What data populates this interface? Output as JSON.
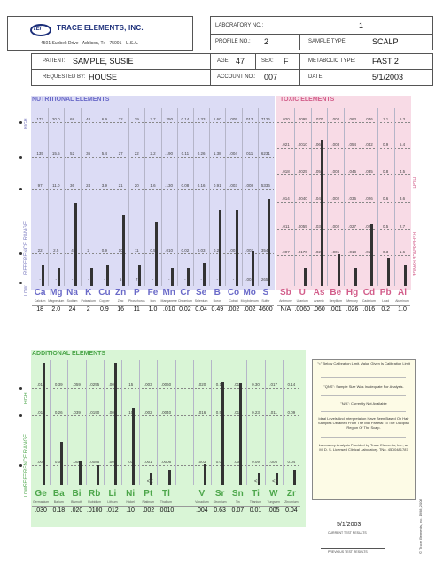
{
  "lab": {
    "name": "TRACE ELEMENTS, INC.",
    "address": "4501 Sunbelt Drive · Addison, Tx · 75001 · U.S.A.",
    "logo_text": "TEI"
  },
  "header": {
    "laboratory_no_label": "LABORATORY NO.:",
    "laboratory_no": "1",
    "profile_no_label": "PROFILE NO.:",
    "profile_no": "2",
    "sample_type_label": "SAMPLE TYPE:",
    "sample_type": "SCALP",
    "patient_label": "PATIENT:",
    "patient": "SAMPLE, SUSIE",
    "age_label": "AGE:",
    "age": "47",
    "sex_label": "SEX:",
    "sex": "F",
    "metabolic_type_label": "METABOLIC TYPE:",
    "metabolic_type": "FAST 2",
    "requested_by_label": "REQUESTED BY:",
    "requested_by": "HOUSE",
    "account_no_label": "ACCOUNT NO.:",
    "account_no": "007",
    "date_label": "DATE:",
    "date": "5/1/2003"
  },
  "nutritional": {
    "title": "NUTRITIONAL ELEMENTS",
    "side_label": "REFERENCE RANGE",
    "high_label": "HIGH",
    "low_label": "LOW",
    "rows": [
      [
        "172",
        "20.0",
        "68",
        "48",
        "6.9",
        "32",
        "29",
        "2.7",
        ".250",
        "0.14",
        "0.33",
        "1.60",
        ".005",
        "013",
        "7126"
      ],
      [
        "135",
        "15.5",
        "52",
        "36",
        "5.4",
        "27",
        "22",
        "2.2",
        ".190",
        "0.11",
        "0.26",
        "1.38",
        ".004",
        "011",
        "6231"
      ],
      [
        "97",
        "11.0",
        "36",
        "24",
        "3.9",
        "21",
        "20",
        "1.6",
        ".130",
        "0.08",
        "0.16",
        "0.91",
        ".003",
        ".008",
        "5336"
      ],
      [
        "22",
        "2.5",
        "4",
        "2",
        "0.9",
        "10",
        "11",
        "0.5",
        ".010",
        "0.02",
        "0.03",
        "0.20",
        ".001",
        ".003",
        "3546"
      ],
      [
        "-",
        "-",
        "-",
        "-",
        "-",
        "5",
        "7",
        "-",
        "-",
        "-",
        "-",
        "-",
        "-",
        ".001",
        "2651"
      ]
    ],
    "elements": [
      {
        "sym": "Ca",
        "name": "Calcium",
        "result": "18",
        "level": 0.12
      },
      {
        "sym": "Mg",
        "name": "Magnesium",
        "result": "2.0",
        "level": 0.1
      },
      {
        "sym": "Na",
        "name": "Sodium",
        "result": "24",
        "level": 0.47
      },
      {
        "sym": "K",
        "name": "Potassium",
        "result": "2",
        "level": 0.1
      },
      {
        "sym": "Cu",
        "name": "Copper",
        "result": "0.9",
        "level": 0.12
      },
      {
        "sym": "Zn",
        "name": "Zinc",
        "result": "16",
        "level": 0.4
      },
      {
        "sym": "P",
        "name": "Phosphorus",
        "result": "11",
        "level": 0.12
      },
      {
        "sym": "Fe",
        "name": "Iron",
        "result": "1.0",
        "level": 0.36
      },
      {
        "sym": "Mn",
        "name": "Manganese",
        "result": ".010",
        "level": 0.1
      },
      {
        "sym": "Cr",
        "name": "Chromium",
        "result": "0.02",
        "level": 0.1
      },
      {
        "sym": "Se",
        "name": "Selenium",
        "result": "0.04",
        "level": 0.13
      },
      {
        "sym": "B",
        "name": "Boron",
        "result": "0.49",
        "level": 0.43
      },
      {
        "sym": "Co",
        "name": "Cobalt",
        "result": ".002",
        "level": 0.43
      },
      {
        "sym": "Mo",
        "name": "Molybdenum",
        "result": ".002",
        "level": 0.2
      },
      {
        "sym": "S",
        "name": "Sulfur",
        "result": "4600",
        "level": 0.49
      }
    ]
  },
  "toxic": {
    "title": "TOXIC ELEMENTS",
    "high_label": "HIGH",
    "side_label": "REFERENCE RANGE",
    "rows": [
      [
        ".020",
        ".0095",
        ".070",
        ".004",
        ".063",
        ".046",
        "1.1",
        "6.3"
      ],
      [
        ".021",
        ".0010",
        ".060",
        ".003",
        ".054",
        ".042",
        "0.9",
        "5.4"
      ],
      [
        ".018",
        ".0025",
        ".050",
        ".003",
        ".045",
        ".035",
        "0.8",
        "4.5"
      ],
      [
        ".014",
        ".0040",
        ".040",
        ".002",
        ".036",
        ".026",
        "0.6",
        "3.6"
      ],
      [
        ".011",
        ".0055",
        ".030",
        ".002",
        ".027",
        ".021",
        "0.5",
        "2.7"
      ],
      [
        ".007",
        ".0170",
        ".020",
        ".001",
        ".018",
        ".014",
        "0.3",
        "1.6"
      ]
    ],
    "elements": [
      {
        "sym": "Sb",
        "name": "Antimony",
        "result": "N/A",
        "level": 0
      },
      {
        "sym": "U",
        "name": "Uranium",
        "result": ".0060",
        "level": 0.1
      },
      {
        "sym": "As",
        "name": "Arsenic",
        "result": ".060",
        "level": 0.82
      },
      {
        "sym": "Be",
        "name": "Beryllium",
        "result": ".001",
        "level": 0.18
      },
      {
        "sym": "Hg",
        "name": "Mercury",
        "result": ".026",
        "level": 0.1
      },
      {
        "sym": "Cd",
        "name": "Cadmium",
        "result": ".016",
        "level": 0.35
      },
      {
        "sym": "Pb",
        "name": "Lead",
        "result": "0.2",
        "level": 0.16
      },
      {
        "sym": "Al",
        "name": "Aluminum",
        "result": "1.0",
        "level": 0.12
      }
    ]
  },
  "additional": {
    "title": "ADDITIONAL ELEMENTS",
    "side_label": "REFERENCE RANGE",
    "high_label": "HIGH",
    "low_label": "LOW",
    "rows": [
      [
        ".014",
        "0.39",
        ".059",
        ".0255",
        ".009",
        ".15",
        ".003",
        ".0060",
        "",
        ".020",
        "0.14",
        ".015",
        "0.30",
        ".017",
        "0.14"
      ],
      [
        ".011",
        "0.26",
        ".039",
        ".0190",
        ".006",
        ".10",
        ".002",
        ".0040",
        "",
        ".016",
        "0.58",
        ".012",
        "0.23",
        ".011",
        "0.09"
      ],
      [
        ".006",
        "0.06",
        ".008",
        ".0085",
        ".003",
        ".01",
        ".001",
        ".0006",
        "",
        ".003",
        "0.05",
        ".005",
        "0.09",
        ".005",
        "0.04"
      ]
    ],
    "elements": [
      {
        "sym": "Ge",
        "name": "Germanium",
        "result": ".030",
        "level": 0.98,
        "lt": false
      },
      {
        "sym": "Ba",
        "name": "Barium",
        "result": "0.18",
        "level": 0.35,
        "lt": false
      },
      {
        "sym": "Bi",
        "name": "Bismuth",
        "result": ".020",
        "level": 0.2,
        "lt": false
      },
      {
        "sym": "Rb",
        "name": "Rubidium",
        "result": ".0100",
        "level": 0.16,
        "lt": false
      },
      {
        "sym": "Li",
        "name": "Lithium",
        "result": ".012",
        "level": 0.98,
        "lt": false
      },
      {
        "sym": "Ni",
        "name": "Nickel",
        "result": ".10",
        "level": 0.62,
        "lt": false
      },
      {
        "sym": "Pt",
        "name": "Platinum",
        "result": ".002",
        "level": 0.1,
        "lt": true
      },
      {
        "sym": "Tl",
        "name": "Thallium",
        "result": ".0010",
        "level": 0.12,
        "lt": false
      },
      {
        "sym": "",
        "name": "",
        "result": "",
        "level": 0,
        "lt": false
      },
      {
        "sym": "V",
        "name": "Vanadium",
        "result": ".004",
        "level": 0.17,
        "lt": false
      },
      {
        "sym": "Sr",
        "name": "Strontium",
        "result": "0.63",
        "level": 0.83,
        "lt": false
      },
      {
        "sym": "Sn",
        "name": "Tin",
        "result": "0.07",
        "level": 0.82,
        "lt": false
      },
      {
        "sym": "Ti",
        "name": "Titanium",
        "result": "0.01",
        "level": 0.1,
        "lt": true
      },
      {
        "sym": "W",
        "name": "Tungsten",
        "result": ".005",
        "level": 0.1,
        "lt": true
      },
      {
        "sym": "Zr",
        "name": "Zirconium",
        "result": "0.04",
        "level": 0.12,
        "lt": false
      }
    ]
  },
  "notes": [
    "\"<\" Below Calibration Limit. Value Given Is Calibration Limit",
    "\"QNS\": Sample Size Was Inadequate For Analysis.",
    "\"N/A\": Currently Not Available",
    "Ideal Levels And Interpretation Have Been Based On Hair Samples Obtained From The Mid Parietal To The Occipital Region Of The Scalp.",
    "Laboratory Analysis Provided by Trace Elements, Inc., an M. D. S. Licensed Clinical Laboratory.  TNo. 45D0481787"
  ],
  "footer": {
    "current_date": "5/1/2003",
    "current_label": "CURRENT TEST RESULTS",
    "previous_label": "PREVIOUS TEST RESULTS",
    "copyright": "© Trace Elements, Inc. 1998, 2008"
  },
  "colors": {
    "nutritional_bg": "#dcdcf5",
    "toxic_bg": "#f8dbe6",
    "additional_bg": "#d9f5d6",
    "nutritional_title": "#6a6ac8",
    "toxic_title": "#d25d8a",
    "additional_title": "#4ca64a"
  }
}
